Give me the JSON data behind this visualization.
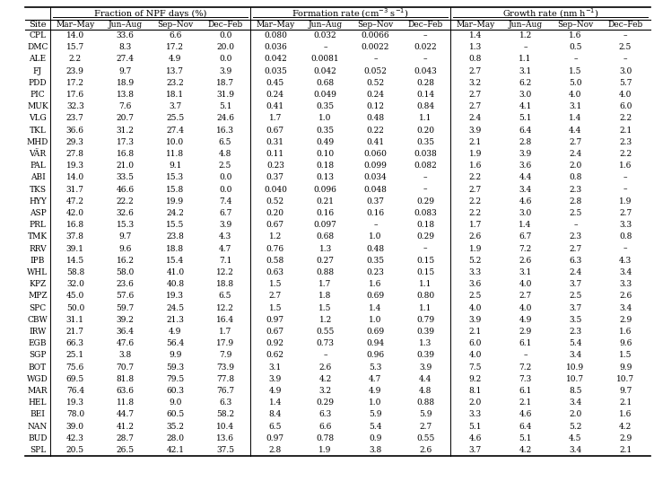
{
  "col_group_labels": [
    "Fraction of NPF days (%)",
    "Formation rate (cm⁻³ s⁻¹)",
    "Growth rate (nm h⁻¹)"
  ],
  "season_labels": [
    "Mar–May",
    "Jun–Aug",
    "Sep–Nov",
    "Dec–Feb"
  ],
  "rows": [
    [
      "CPL",
      "14.0",
      "33.6",
      "6.6",
      "0.0",
      "0.080",
      "0.032",
      "0.0066",
      "–",
      "1.4",
      "1.2",
      "1.6",
      "–"
    ],
    [
      "DMC",
      "15.7",
      "8.3",
      "17.2",
      "20.0",
      "0.036",
      "–",
      "0.0022",
      "0.022",
      "1.3",
      "–",
      "0.5",
      "2.5"
    ],
    [
      "ALE",
      "2.2",
      "27.4",
      "4.9",
      "0.0",
      "0.042",
      "0.0081",
      "–",
      "–",
      "0.8",
      "1.1",
      "–",
      "–"
    ],
    [
      "FJ",
      "23.9",
      "9.7",
      "13.7",
      "3.9",
      "0.035",
      "0.042",
      "0.052",
      "0.043",
      "2.7",
      "3.1",
      "1.5",
      "3.0"
    ],
    [
      "PDD",
      "17.2",
      "18.9",
      "23.2",
      "18.7",
      "0.45",
      "0.68",
      "0.52",
      "0.28",
      "3.2",
      "6.2",
      "5.0",
      "5.7"
    ],
    [
      "PIC",
      "17.6",
      "13.8",
      "18.1",
      "31.9",
      "0.24",
      "0.049",
      "0.24",
      "0.14",
      "2.7",
      "3.0",
      "4.0",
      "4.0"
    ],
    [
      "MUK",
      "32.3",
      "7.6",
      "3.7",
      "5.1",
      "0.41",
      "0.35",
      "0.12",
      "0.84",
      "2.7",
      "4.1",
      "3.1",
      "6.0"
    ],
    [
      "VLG",
      "23.7",
      "20.7",
      "25.5",
      "24.6",
      "1.7",
      "1.0",
      "0.48",
      "1.1",
      "2.4",
      "5.1",
      "1.4",
      "2.2"
    ],
    [
      "TKL",
      "36.6",
      "31.2",
      "27.4",
      "16.3",
      "0.67",
      "0.35",
      "0.22",
      "0.20",
      "3.9",
      "6.4",
      "4.4",
      "2.1"
    ],
    [
      "MHD",
      "29.3",
      "17.3",
      "10.0",
      "6.5",
      "0.31",
      "0.49",
      "0.41",
      "0.35",
      "2.1",
      "2.8",
      "2.7",
      "2.3"
    ],
    [
      "VÄR",
      "27.8",
      "16.8",
      "11.8",
      "4.8",
      "0.11",
      "0.10",
      "0.060",
      "0.038",
      "1.9",
      "3.9",
      "2.4",
      "2.2"
    ],
    [
      "PAL",
      "19.3",
      "21.0",
      "9.1",
      "2.5",
      "0.23",
      "0.18",
      "0.099",
      "0.082",
      "1.6",
      "3.6",
      "2.0",
      "1.6"
    ],
    [
      "ABI",
      "14.0",
      "33.5",
      "15.3",
      "0.0",
      "0.37",
      "0.13",
      "0.034",
      "–",
      "2.2",
      "4.4",
      "0.8",
      "–"
    ],
    [
      "TKS",
      "31.7",
      "46.6",
      "15.8",
      "0.0",
      "0.040",
      "0.096",
      "0.048",
      "–",
      "2.7",
      "3.4",
      "2.3",
      "–"
    ],
    [
      "HYY",
      "47.2",
      "22.2",
      "19.9",
      "7.4",
      "0.52",
      "0.21",
      "0.37",
      "0.29",
      "2.2",
      "4.6",
      "2.8",
      "1.9"
    ],
    [
      "ASP",
      "42.0",
      "32.6",
      "24.2",
      "6.7",
      "0.20",
      "0.16",
      "0.16",
      "0.083",
      "2.2",
      "3.0",
      "2.5",
      "2.7"
    ],
    [
      "PRL",
      "16.8",
      "15.3",
      "15.5",
      "3.9",
      "0.67",
      "0.097",
      "–",
      "0.18",
      "1.7",
      "1.4",
      "–",
      "3.3"
    ],
    [
      "TMK",
      "37.8",
      "9.7",
      "23.8",
      "4.3",
      "1.2",
      "0.68",
      "1.0",
      "0.29",
      "2.6",
      "6.7",
      "2.3",
      "0.8"
    ],
    [
      "RRV",
      "39.1",
      "9.6",
      "18.8",
      "4.7",
      "0.76",
      "1.3",
      "0.48",
      "–",
      "1.9",
      "7.2",
      "2.7",
      "–"
    ],
    [
      "IPB",
      "14.5",
      "16.2",
      "15.4",
      "7.1",
      "0.58",
      "0.27",
      "0.35",
      "0.15",
      "5.2",
      "2.6",
      "6.3",
      "4.3"
    ],
    [
      "WHL",
      "58.8",
      "58.0",
      "41.0",
      "12.2",
      "0.63",
      "0.88",
      "0.23",
      "0.15",
      "3.3",
      "3.1",
      "2.4",
      "3.4"
    ],
    [
      "KPZ",
      "32.0",
      "23.6",
      "40.8",
      "18.8",
      "1.5",
      "1.7",
      "1.6",
      "1.1",
      "3.6",
      "4.0",
      "3.7",
      "3.3"
    ],
    [
      "MPZ",
      "45.0",
      "57.6",
      "19.3",
      "6.5",
      "2.7",
      "1.8",
      "0.69",
      "0.80",
      "2.5",
      "2.7",
      "2.5",
      "2.6"
    ],
    [
      "SPC",
      "50.0",
      "59.7",
      "24.5",
      "12.2",
      "1.5",
      "1.5",
      "1.4",
      "1.1",
      "4.0",
      "4.0",
      "3.7",
      "3.4"
    ],
    [
      "CBW",
      "31.1",
      "39.2",
      "21.3",
      "16.4",
      "0.97",
      "1.2",
      "1.0",
      "0.79",
      "3.9",
      "4.9",
      "3.5",
      "2.9"
    ],
    [
      "IRW",
      "21.7",
      "36.4",
      "4.9",
      "1.7",
      "0.67",
      "0.55",
      "0.69",
      "0.39",
      "2.1",
      "2.9",
      "2.3",
      "1.6"
    ],
    [
      "EGB",
      "66.3",
      "47.6",
      "56.4",
      "17.9",
      "0.92",
      "0.73",
      "0.94",
      "1.3",
      "6.0",
      "6.1",
      "5.4",
      "9.6"
    ],
    [
      "SGP",
      "25.1",
      "3.8",
      "9.9",
      "7.9",
      "0.62",
      "–",
      "0.96",
      "0.39",
      "4.0",
      "–",
      "3.4",
      "1.5"
    ],
    [
      "BOT",
      "75.6",
      "70.7",
      "59.3",
      "73.9",
      "3.1",
      "2.6",
      "5.3",
      "3.9",
      "7.5",
      "7.2",
      "10.9",
      "9.9"
    ],
    [
      "WGD",
      "69.5",
      "81.8",
      "79.5",
      "77.8",
      "3.9",
      "4.2",
      "4.7",
      "4.4",
      "9.2",
      "7.3",
      "10.7",
      "10.7"
    ],
    [
      "MAR",
      "76.4",
      "63.6",
      "60.3",
      "76.7",
      "4.9",
      "3.2",
      "4.9",
      "4.8",
      "8.1",
      "6.1",
      "8.5",
      "9.7"
    ],
    [
      "HEL",
      "19.3",
      "11.8",
      "9.0",
      "6.3",
      "1.4",
      "0.29",
      "1.0",
      "0.88",
      "2.0",
      "2.1",
      "3.4",
      "2.1"
    ],
    [
      "BEI",
      "78.0",
      "44.7",
      "60.5",
      "58.2",
      "8.4",
      "6.3",
      "5.9",
      "5.9",
      "3.3",
      "4.6",
      "2.0",
      "1.6"
    ],
    [
      "NAN",
      "39.0",
      "41.2",
      "35.2",
      "10.4",
      "6.5",
      "6.6",
      "5.4",
      "2.7",
      "5.1",
      "6.4",
      "5.2",
      "4.2"
    ],
    [
      "BUD",
      "42.3",
      "28.7",
      "28.0",
      "13.6",
      "0.97",
      "0.78",
      "0.9",
      "0.55",
      "4.6",
      "5.1",
      "4.5",
      "2.9"
    ],
    [
      "SPL",
      "20.5",
      "26.5",
      "42.1",
      "37.5",
      "2.8",
      "1.9",
      "3.8",
      "2.6",
      "3.7",
      "4.2",
      "3.4",
      "2.1"
    ]
  ],
  "font_size": 6.5,
  "header_font_size": 7.0
}
